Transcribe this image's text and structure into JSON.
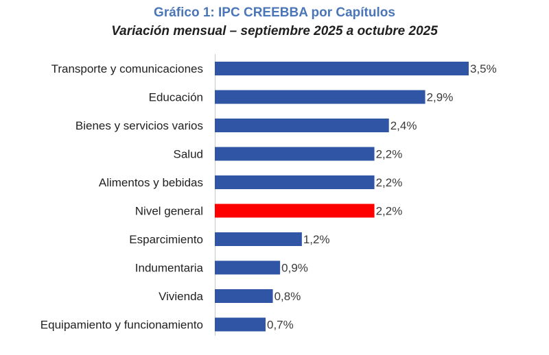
{
  "chart_data": {
    "type": "bar",
    "orientation": "horizontal",
    "title": "Gráfico 1: IPC CREEBBA por Capítulos",
    "subtitle": "Variación mensual – septiembre 2025 a octubre 2025",
    "categories": [
      "Transporte y comunicaciones",
      "Educación",
      "Bienes y servicios varios",
      "Salud",
      "Alimentos y bebidas",
      "Nivel general",
      "Esparcimiento",
      "Indumentaria",
      "Vivienda",
      "Equipamiento y funcionamiento"
    ],
    "values": [
      3.5,
      2.9,
      2.4,
      2.2,
      2.2,
      2.2,
      1.2,
      0.9,
      0.8,
      0.7
    ],
    "value_labels": [
      "3,5%",
      "2,9%",
      "2,4%",
      "2,2%",
      "2,2%",
      "2,2%",
      "1,2%",
      "0,9%",
      "0,8%",
      "0,7%"
    ],
    "bar_colors": [
      "#2f55a4",
      "#2f55a4",
      "#2f55a4",
      "#2f55a4",
      "#2f55a4",
      "#ff0000",
      "#2f55a4",
      "#2f55a4",
      "#2f55a4",
      "#2f55a4"
    ],
    "xlim": [
      0,
      3.5
    ],
    "xlabel": "",
    "ylabel": "",
    "grid": false,
    "legend": "none"
  }
}
